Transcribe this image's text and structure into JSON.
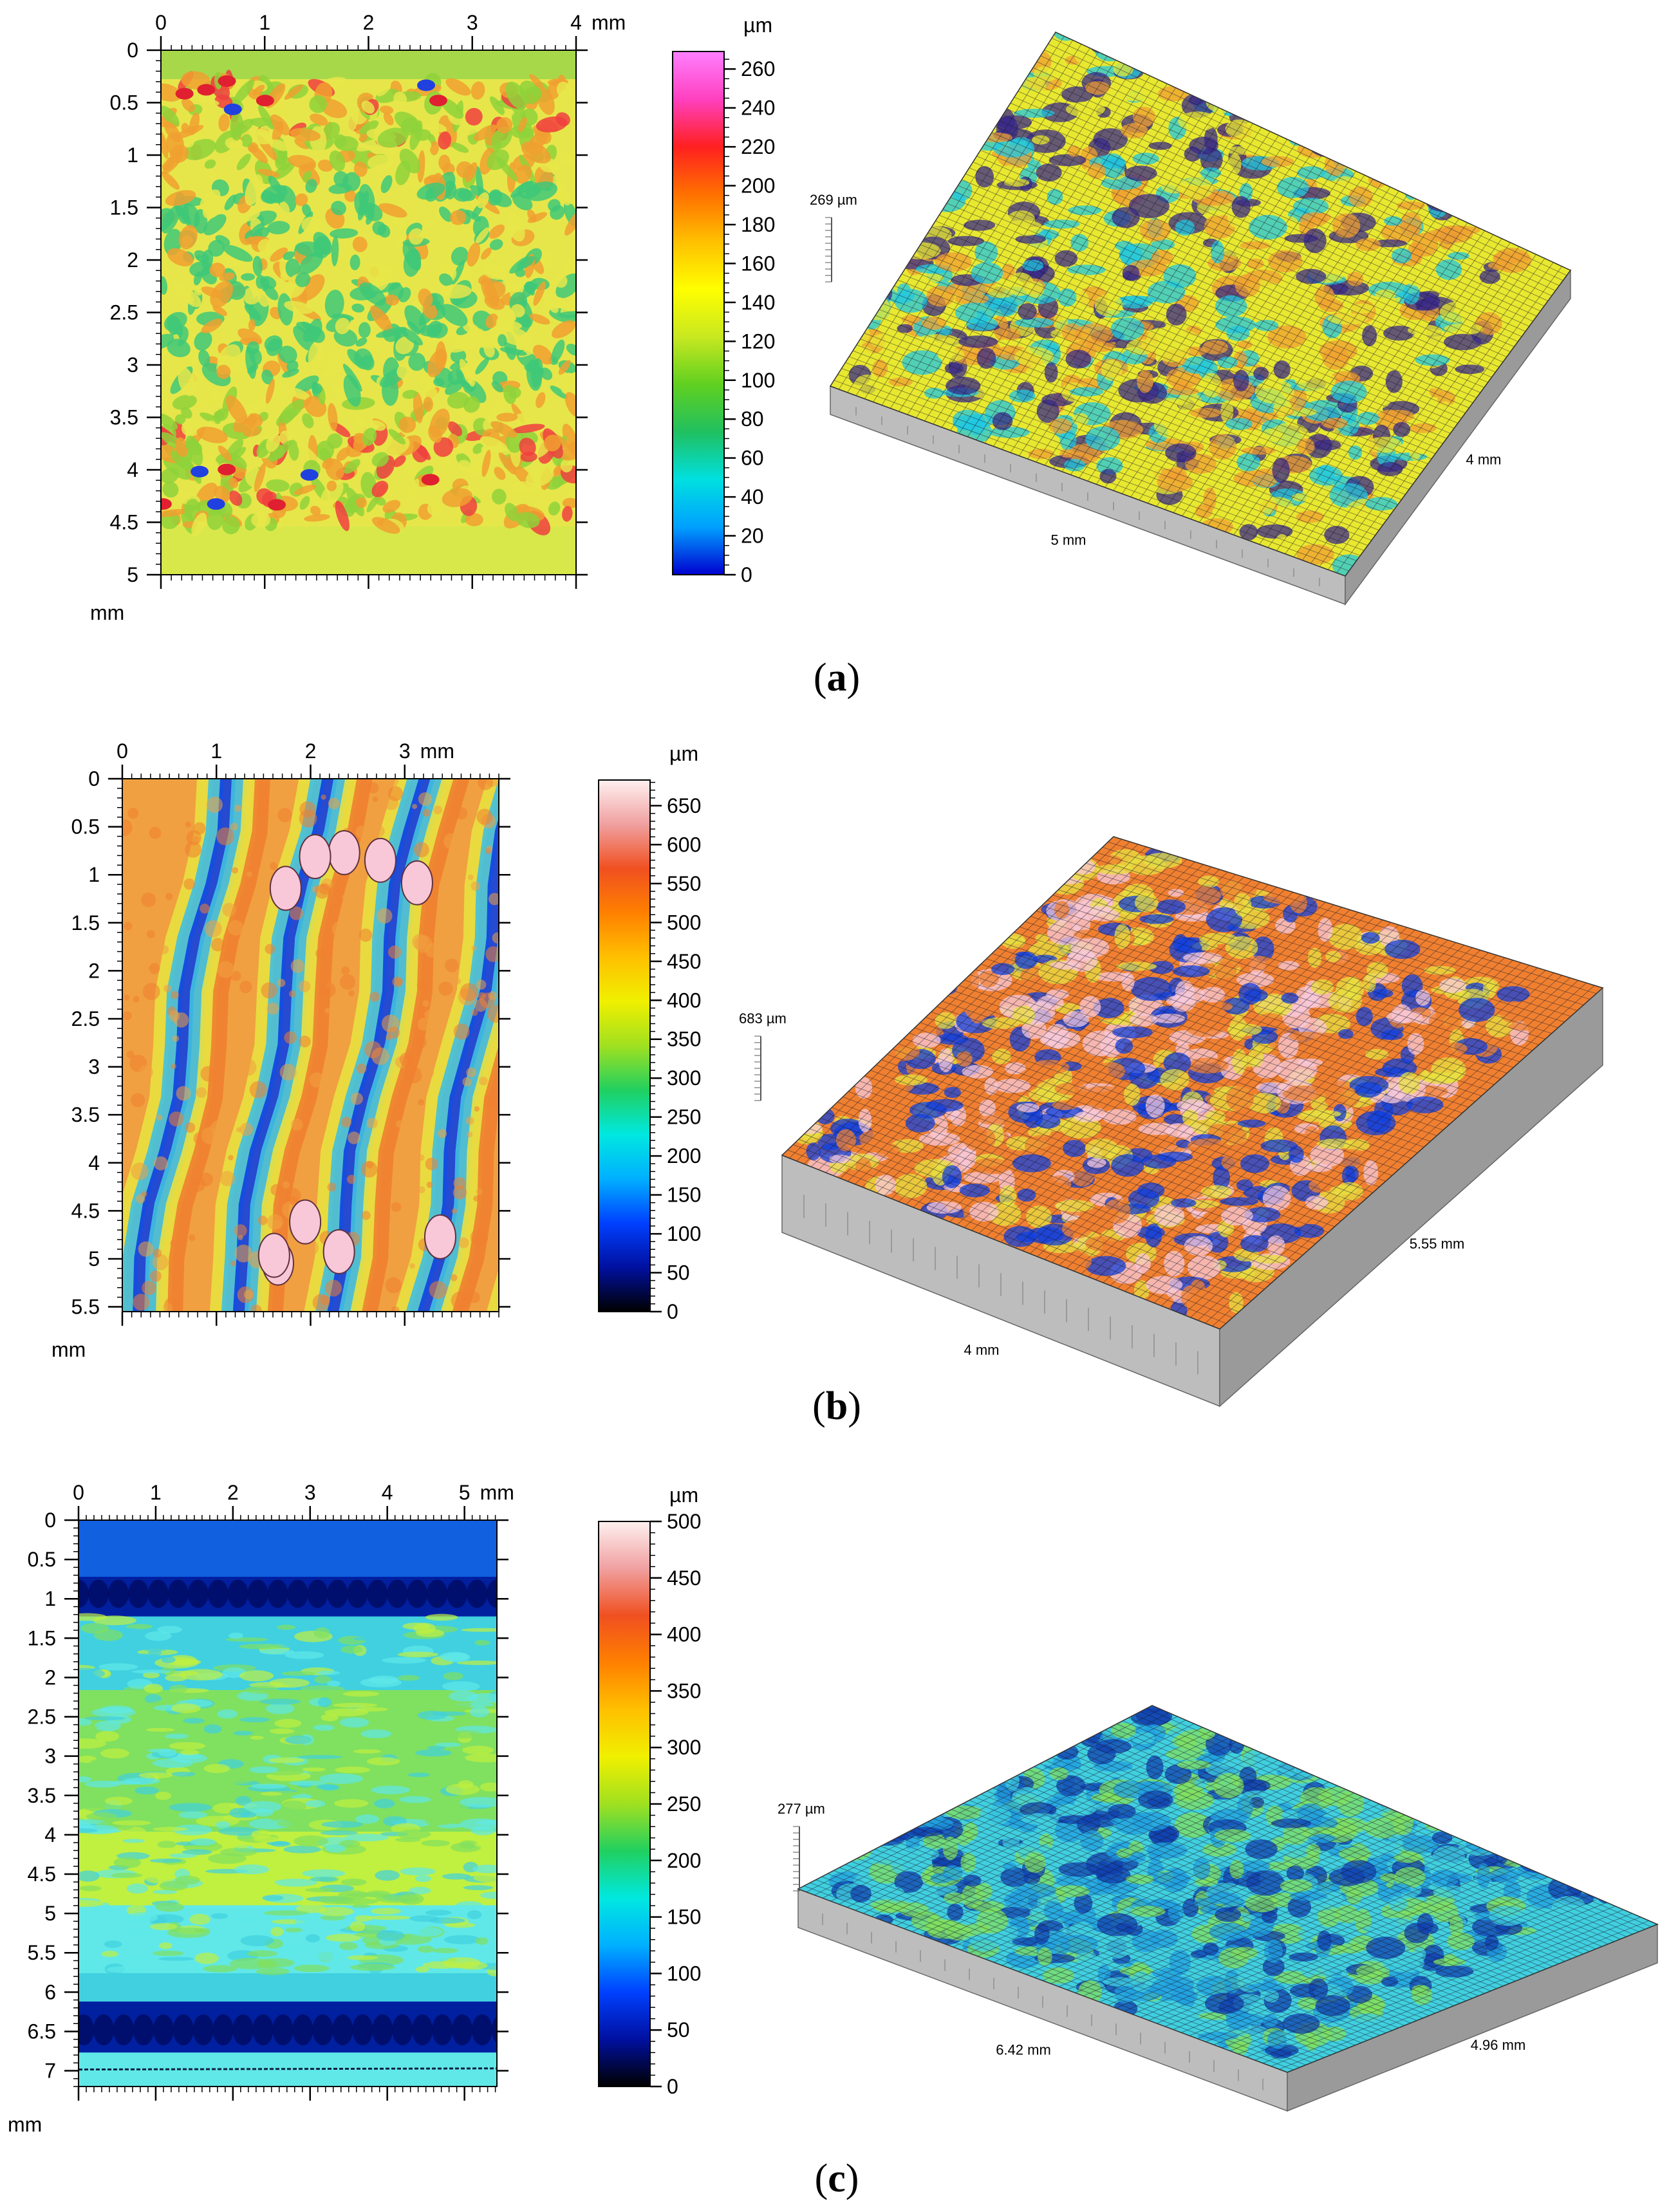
{
  "figure": {
    "panels": [
      {
        "label": "a",
        "height_map": {
          "x_axis_unit": "mm",
          "y_axis_unit": "mm",
          "x_ticks": [
            "0",
            "1",
            "2",
            "3",
            "4"
          ],
          "y_ticks": [
            "0",
            "0.5",
            "1",
            "1.5",
            "2",
            "2.5",
            "3",
            "3.5",
            "4",
            "4.5",
            "5"
          ],
          "x_range_mm": [
            0,
            4
          ],
          "y_range_mm": [
            0,
            5
          ],
          "texture": "patchy",
          "base_colors": [
            "#e6e64a",
            "#8ed23a",
            "#3ec878",
            "#f0a030",
            "#f04040"
          ]
        },
        "colorbar": {
          "unit": "µm",
          "ticks": [
            "260",
            "240",
            "220",
            "200",
            "180",
            "160",
            "140",
            "120",
            "100",
            "80",
            "60",
            "40",
            "20",
            "0"
          ],
          "range": [
            0,
            269
          ],
          "colors": [
            "#0000d0",
            "#00a0ff",
            "#00e0e0",
            "#20c060",
            "#60d020",
            "#c8e820",
            "#ffff00",
            "#ffc000",
            "#ff7000",
            "#ff2020",
            "#ff40c0",
            "#ff80ff"
          ]
        },
        "surface_3d": {
          "height_label": "269 µm",
          "length_label": "5 mm",
          "width_label": "4 mm",
          "dominant_colors": [
            "#e8e830",
            "#f0a030",
            "#20c8e0",
            "#3a2a8a"
          ]
        }
      },
      {
        "label": "b",
        "height_map": {
          "x_axis_unit": "mm",
          "y_axis_unit": "mm",
          "x_ticks": [
            "0",
            "1",
            "2",
            "3"
          ],
          "y_ticks": [
            "0",
            "0.5",
            "1",
            "1.5",
            "2",
            "2.5",
            "3",
            "3.5",
            "4",
            "4.5",
            "5",
            "5.5"
          ],
          "x_range_mm": [
            0,
            4
          ],
          "y_range_mm": [
            0,
            5.55
          ],
          "texture": "diagonal-bands",
          "base_colors": [
            "#f0a040",
            "#f08030",
            "#e8e040",
            "#40c0e0",
            "#1040e0",
            "#f8c8d8"
          ]
        },
        "colorbar": {
          "unit": "µm",
          "ticks": [
            "650",
            "600",
            "550",
            "500",
            "450",
            "400",
            "350",
            "300",
            "250",
            "200",
            "150",
            "100",
            "50",
            "0"
          ],
          "range": [
            0,
            683
          ],
          "colors": [
            "#000000",
            "#0010a0",
            "#0040ff",
            "#00b0ff",
            "#00e8e0",
            "#20d060",
            "#a0e020",
            "#f0f000",
            "#ffc000",
            "#ff8000",
            "#f05020",
            "#f0a0a0",
            "#fff0f0"
          ]
        },
        "surface_3d": {
          "height_label": "683 µm",
          "length_label": "4 mm",
          "width_label": "5.55 mm",
          "dominant_colors": [
            "#f08030",
            "#e8e040",
            "#1040e0",
            "#f8c8d8"
          ]
        }
      },
      {
        "label": "c",
        "height_map": {
          "x_axis_unit": "mm",
          "y_axis_unit": "mm",
          "x_ticks": [
            "0",
            "1",
            "2",
            "3",
            "4",
            "5"
          ],
          "y_ticks": [
            "0",
            "0.5",
            "1",
            "1.5",
            "2",
            "2.5",
            "3",
            "3.5",
            "4",
            "4.5",
            "5",
            "5.5",
            "6",
            "6.5",
            "7"
          ],
          "x_range_mm": [
            0,
            5.42
          ],
          "y_range_mm": [
            0,
            7.2
          ],
          "texture": "horizontal-bands",
          "base_colors": [
            "#1060e0",
            "#0020a0",
            "#40d0e0",
            "#80e060",
            "#c0f040",
            "#60e8e8"
          ]
        },
        "colorbar": {
          "unit": "µm",
          "ticks": [
            "500",
            "450",
            "400",
            "350",
            "300",
            "250",
            "200",
            "150",
            "100",
            "50",
            "0"
          ],
          "range": [
            0,
            500
          ],
          "colors": [
            "#000000",
            "#0010a0",
            "#0040ff",
            "#00b0ff",
            "#00e8e0",
            "#20d060",
            "#a0e020",
            "#f0f000",
            "#ffc000",
            "#ff8000",
            "#f05020",
            "#f0a0a0",
            "#fff0f0"
          ]
        },
        "surface_3d": {
          "height_label": "277 µm",
          "length_label": "6.42 mm",
          "width_label": "4.96 mm",
          "dominant_colors": [
            "#40d0e0",
            "#80e060",
            "#1040b0",
            "#20a0e0"
          ]
        }
      }
    ]
  },
  "chart_data": [
    {
      "type": "heatmap",
      "panel": "a",
      "xlabel": "mm",
      "ylabel": "mm",
      "xlim": [
        0,
        4
      ],
      "ylim": [
        0,
        5
      ],
      "colorbar_unit": "µm",
      "colorbar_range": [
        0,
        269
      ],
      "surface_height": "269 µm",
      "surface_dims": [
        "5 mm",
        "4 mm"
      ]
    },
    {
      "type": "heatmap",
      "panel": "b",
      "xlabel": "mm",
      "ylabel": "mm",
      "xlim": [
        0,
        4
      ],
      "ylim": [
        0,
        5.55
      ],
      "colorbar_unit": "µm",
      "colorbar_range": [
        0,
        683
      ],
      "surface_height": "683 µm",
      "surface_dims": [
        "4 mm",
        "5.55 mm"
      ]
    },
    {
      "type": "heatmap",
      "panel": "c",
      "xlabel": "mm",
      "ylabel": "mm",
      "xlim": [
        0,
        5.42
      ],
      "ylim": [
        0,
        7.2
      ],
      "colorbar_unit": "µm",
      "colorbar_range": [
        0,
        500
      ],
      "surface_height": "277 µm",
      "surface_dims": [
        "6.42 mm",
        "4.96 mm"
      ]
    }
  ]
}
